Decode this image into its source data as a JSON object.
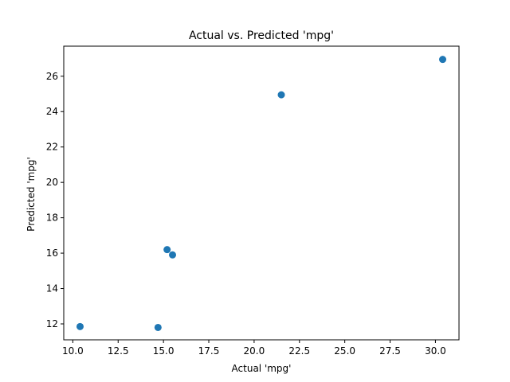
{
  "chart_data": {
    "type": "scatter",
    "title": "Actual vs. Predicted 'mpg'",
    "xlabel": "Actual 'mpg'",
    "ylabel": "Predicted 'mpg'",
    "xlim": [
      9.5,
      31.3
    ],
    "ylim": [
      11.1,
      27.7
    ],
    "xticks": [
      10.0,
      12.5,
      15.0,
      17.5,
      20.0,
      22.5,
      25.0,
      27.5,
      30.0
    ],
    "xtick_labels": [
      "10.0",
      "12.5",
      "15.0",
      "17.5",
      "20.0",
      "22.5",
      "25.0",
      "27.5",
      "30.0"
    ],
    "yticks": [
      12,
      14,
      16,
      18,
      20,
      22,
      24,
      26
    ],
    "ytick_labels": [
      "12",
      "14",
      "16",
      "18",
      "20",
      "22",
      "24",
      "26"
    ],
    "grid": false,
    "legend": "none",
    "color": "#1f77b4",
    "points": [
      {
        "x": 10.4,
        "y": 11.85
      },
      {
        "x": 14.7,
        "y": 11.8
      },
      {
        "x": 15.2,
        "y": 16.2
      },
      {
        "x": 15.5,
        "y": 15.9
      },
      {
        "x": 21.5,
        "y": 24.95
      },
      {
        "x": 30.4,
        "y": 26.95
      }
    ]
  }
}
